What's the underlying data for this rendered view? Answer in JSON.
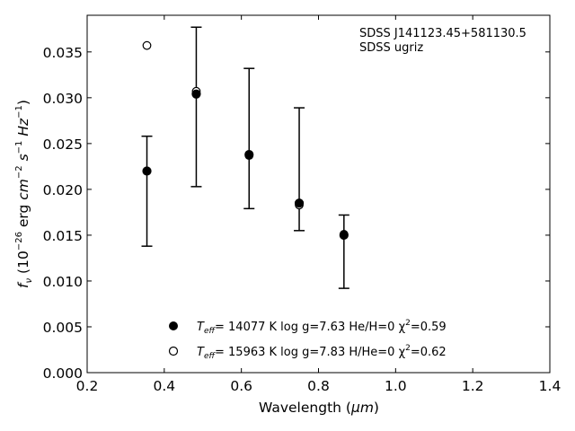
{
  "chart_data": {
    "type": "scatter",
    "xlabel_main": "Wavelength (",
    "xlabel_unit": "μm",
    "xlabel_close": ")",
    "ylabel_f": "f",
    "ylabel_nu": "ν",
    "ylabel_open": " (10",
    "ylabel_exp": "−26",
    "ylabel_erg": " erg ",
    "ylabel_cm": "cm",
    "ylabel_cm_exp": "−2",
    "ylabel_s": " s",
    "ylabel_s_exp": "−1",
    "ylabel_hz": " Hz",
    "ylabel_hz_exp": "−1",
    "ylabel_close": ")",
    "xlim": [
      0.2,
      1.4
    ],
    "ylim": [
      0.0,
      0.039
    ],
    "x_ticks": [
      0.2,
      0.4,
      0.6,
      0.8,
      1.0,
      1.2,
      1.4
    ],
    "x_tick_labels": [
      "0.2",
      "0.4",
      "0.6",
      "0.8",
      "1.0",
      "1.2",
      "1.4"
    ],
    "y_ticks": [
      0.0,
      0.005,
      0.01,
      0.015,
      0.02,
      0.025,
      0.03,
      0.035
    ],
    "y_tick_labels": [
      "0.000",
      "0.005",
      "0.010",
      "0.015",
      "0.020",
      "0.025",
      "0.030",
      "0.035"
    ],
    "grid": false,
    "annotations": [
      "SDSS J141123.45+581130.5",
      "SDSS ugriz"
    ],
    "observed": {
      "x": [
        0.355,
        0.483,
        0.62,
        0.75,
        0.866
      ],
      "y": [
        0.022,
        0.0305,
        0.0238,
        0.0184,
        0.0151
      ],
      "yerr_low": [
        0.0138,
        0.0203,
        0.0179,
        0.0155,
        0.0092
      ],
      "yerr_high": [
        0.0258,
        0.0377,
        0.0332,
        0.0289,
        0.0172
      ]
    },
    "series": [
      {
        "marker": "filled",
        "x": [
          0.355,
          0.483,
          0.62,
          0.75,
          0.866
        ],
        "y": [
          0.022,
          0.0304,
          0.0238,
          0.0185,
          0.015
        ],
        "legend": {
          "t_label": "T",
          "t_sub": "eff",
          "rest": "= 14077 K  log g=7.63  He/H=0  χ",
          "sq": "2",
          "chi": "=0.59"
        }
      },
      {
        "marker": "open",
        "x": [
          0.355,
          0.483,
          0.62,
          0.75,
          0.866
        ],
        "y": [
          0.0357,
          0.0307,
          0.0237,
          0.0183,
          0.0151
        ],
        "legend": {
          "t_label": "T",
          "t_sub": "eff",
          "rest": "= 15963 K  log g=7.83  H/He=0  χ",
          "sq": "2",
          "chi": "=0.62"
        }
      }
    ],
    "legend_position": "lower-center"
  }
}
